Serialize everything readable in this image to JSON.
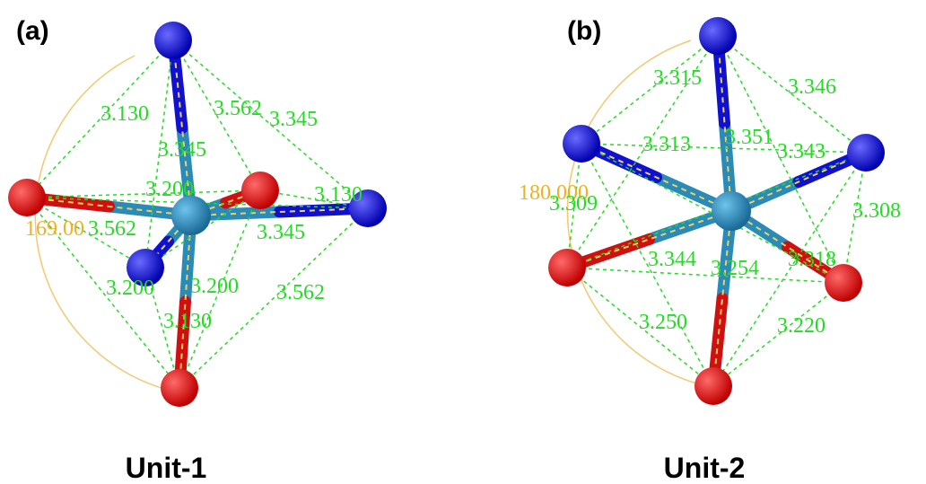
{
  "panels": [
    {
      "label": "(a)",
      "caption": "Unit-1",
      "angle": "169.00",
      "distances": [
        "3.130",
        "3.562",
        "3.345",
        "3.345",
        "3.200",
        "3.130",
        "3.562",
        "3.345",
        "3.200",
        "3.200",
        "3.562",
        "3.130"
      ]
    },
    {
      "label": "(b)",
      "caption": "Unit-2",
      "angle": "180.000",
      "distances": [
        "3.315",
        "3.346",
        "3.313",
        "3.351",
        "3.343",
        "3.309",
        "3.308",
        "3.344",
        "3.254",
        "3.318",
        "3.250",
        "3.220"
      ]
    }
  ]
}
